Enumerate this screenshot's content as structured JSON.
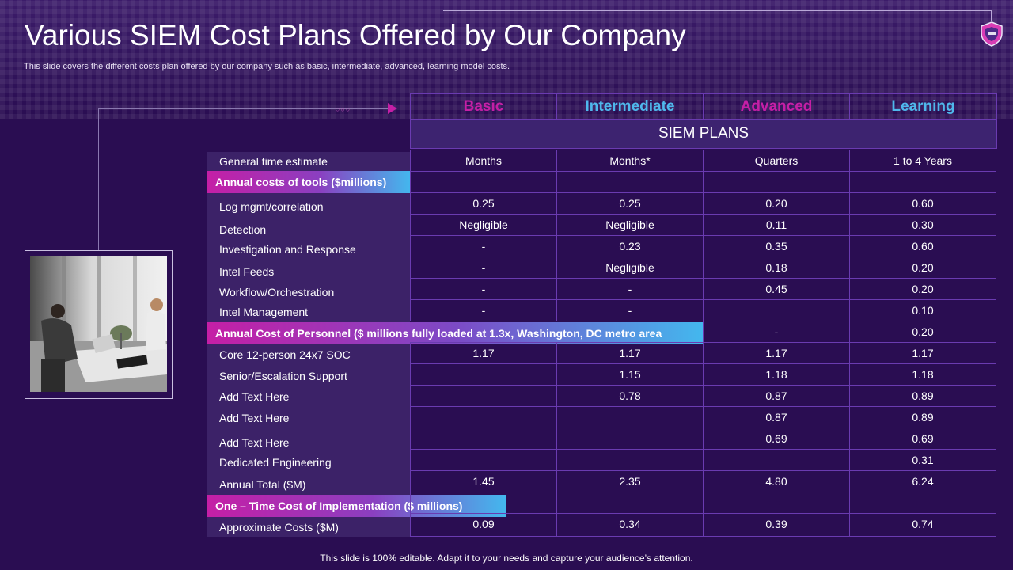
{
  "slide": {
    "title": "Various SIEM Cost Plans Offered by Our Company",
    "subtitle": "This slide covers the different costs plan offered by our company such as basic, intermediate, advanced, learning model costs.",
    "footer": "This slide is 100% editable. Adapt it to your needs and capture your audience’s attention."
  },
  "table": {
    "plans_label": "SIEM PLANS",
    "columns": [
      {
        "label": "Basic",
        "color": "#c51fa6"
      },
      {
        "label": "Intermediate",
        "color": "#4fb8ec"
      },
      {
        "label": "Advanced",
        "color": "#c51fa6"
      },
      {
        "label": "Learning",
        "color": "#4fb8ec"
      }
    ],
    "row_labels": [
      "General time estimate",
      "Log mgmt/correlation",
      "Detection",
      "Investigation and Response",
      "Intel Feeds",
      "Workflow/Orchestration",
      "Intel Management",
      "Core 12-person 24x7 SOC",
      "Senior/Escalation Support",
      "Add Text Here",
      "Add Text Here",
      "Add Text Here",
      "Dedicated Engineering",
      "Annual Total ($M)",
      "Approximate Costs ($M)"
    ],
    "sections": [
      "Annual costs of tools ($millions)",
      "Annual Cost of Personnel ($ millions fully loaded at 1.3x, Washington, DC metro area",
      "One – Time Cost of Implementation ($ millions)"
    ],
    "rows": [
      [
        "Months",
        "Months*",
        "Quarters",
        "1 to 4 Years"
      ],
      [
        "",
        "",
        "",
        ""
      ],
      [
        "0.25",
        "0.25",
        "0.20",
        "0.60"
      ],
      [
        "Negligible",
        "Negligible",
        "0.11",
        "0.30"
      ],
      [
        "-",
        "0.23",
        "0.35",
        "0.60"
      ],
      [
        "-",
        "Negligible",
        "0.18",
        "0.20"
      ],
      [
        "-",
        "-",
        "0.45",
        "0.20"
      ],
      [
        "-",
        "-",
        "",
        "0.10"
      ],
      [
        "",
        "",
        "-",
        "0.20"
      ],
      [
        "1.17",
        "1.17",
        "1.17",
        "1.17"
      ],
      [
        "",
        "1.15",
        "1.18",
        "1.18"
      ],
      [
        "",
        "0.78",
        "0.87",
        "0.89"
      ],
      [
        "",
        "",
        "0.87",
        "0.89"
      ],
      [
        "",
        "",
        "0.69",
        "0.69"
      ],
      [
        "",
        "",
        "",
        "0.31"
      ],
      [
        "1.45",
        "2.35",
        "4.80",
        "6.24"
      ],
      [
        "",
        "",
        "",
        ""
      ],
      [
        "0.09",
        "0.34",
        "0.39",
        "0.74"
      ]
    ]
  }
}
